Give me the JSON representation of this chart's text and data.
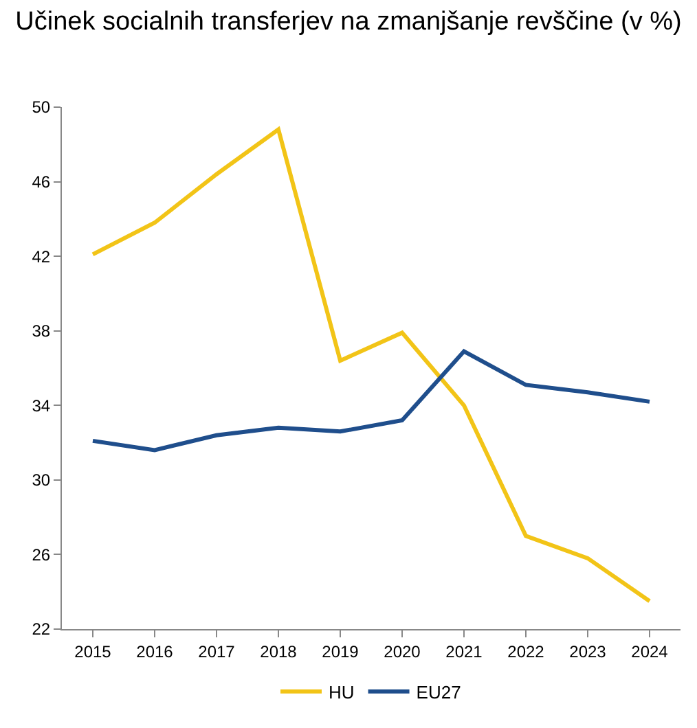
{
  "chart_data": {
    "type": "line",
    "title": "Učinek socialnih transferjev na zmanjšanje revščine (v %)",
    "categories": [
      "2015",
      "2016",
      "2017",
      "2018",
      "2019",
      "2020",
      "2021",
      "2022",
      "2023",
      "2024"
    ],
    "series": [
      {
        "name": "HU",
        "color": "#f2c417",
        "values": [
          42.1,
          43.8,
          46.4,
          48.8,
          36.4,
          37.9,
          34.0,
          27.0,
          25.8,
          23.5
        ]
      },
      {
        "name": "EU27",
        "color": "#1f4e8c",
        "values": [
          32.1,
          31.6,
          32.4,
          32.8,
          32.6,
          33.2,
          36.9,
          35.1,
          34.7,
          34.2
        ]
      }
    ],
    "ylim": [
      22,
      50
    ],
    "yticks": [
      22,
      26,
      30,
      34,
      38,
      42,
      46,
      50
    ],
    "grid": false,
    "legend": "bottom",
    "marker": "none",
    "line_style": "solid"
  }
}
